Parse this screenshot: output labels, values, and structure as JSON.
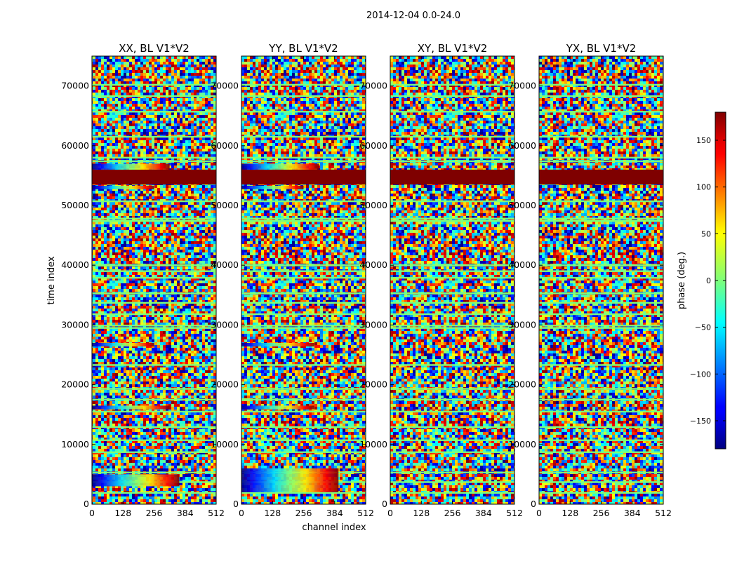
{
  "suptitle": "2014-12-04 0.0-24.0",
  "chart_data": {
    "type": "heatmap",
    "colormap": "jet",
    "xlabel": "channel index",
    "ylabel": "time index",
    "xlim": [
      0,
      512
    ],
    "ylim": [
      0,
      75000
    ],
    "xticks": [
      0,
      128,
      256,
      384,
      512
    ],
    "yticks": [
      0,
      10000,
      20000,
      30000,
      40000,
      50000,
      60000,
      70000
    ],
    "panels": [
      {
        "title": "XX, BL V1*V2",
        "saturated_band": [
          53500,
          56000
        ],
        "colored_rows": [
          {
            "y": [
              56000,
              57000
            ],
            "x_end": 320
          },
          {
            "y": [
              52700,
              53300
            ],
            "x_end": 256
          },
          {
            "y": [
              26400,
              27000
            ],
            "x_end": 256
          },
          {
            "y": [
              15900,
              16500
            ],
            "x_end": 320
          },
          {
            "y": [
              3000,
              5000
            ],
            "x_end": 360
          }
        ]
      },
      {
        "title": "YY, BL V1*V2",
        "saturated_band": [
          53500,
          56000
        ],
        "colored_rows": [
          {
            "y": [
              56000,
              57000
            ],
            "x_end": 320
          },
          {
            "y": [
              52700,
              53300
            ],
            "x_end": 256
          },
          {
            "y": [
              26400,
              27000
            ],
            "x_end": 300
          },
          {
            "y": [
              15900,
              16500
            ],
            "x_end": 300
          },
          {
            "y": [
              2000,
              6000
            ],
            "x_end": 400
          }
        ]
      },
      {
        "title": "XY, BL V1*V2",
        "saturated_band": [
          53500,
          56000
        ],
        "colored_rows": []
      },
      {
        "title": "YX, BL V1*V2",
        "saturated_band": [
          53500,
          56000
        ],
        "colored_rows": []
      }
    ],
    "flat_rows": [
      70200,
      68300,
      65700,
      61500,
      58000,
      57400,
      50700,
      47800,
      47400,
      40000,
      39000,
      37900,
      35300,
      33700,
      31800,
      29900,
      29500,
      23300,
      19300,
      17500,
      15500,
      12900,
      10700,
      8700,
      5300,
      3700,
      1900
    ],
    "colorbar": {
      "label": "phase (deg.)",
      "range": [
        -180,
        180
      ],
      "ticks": [
        150,
        100,
        50,
        0,
        -50,
        -100,
        -150
      ],
      "tick_labels": [
        "150",
        "100",
        "50",
        "0",
        "−50",
        "−100",
        "−150"
      ]
    }
  }
}
